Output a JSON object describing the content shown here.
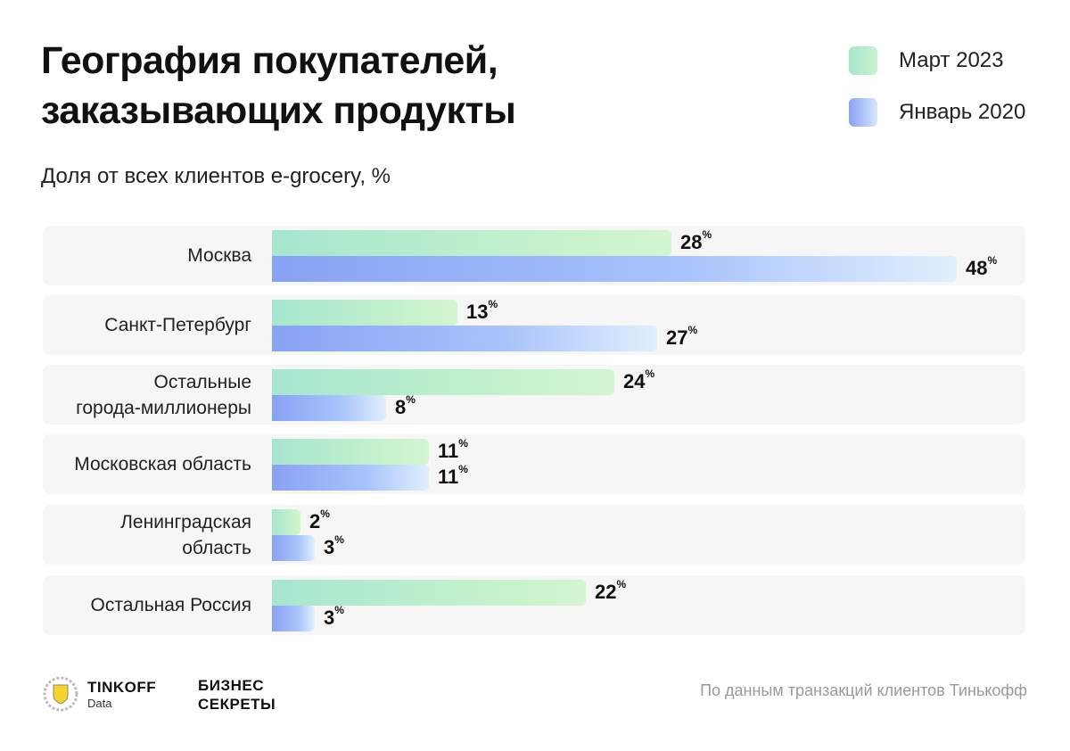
{
  "header": {
    "title": "География покупателей, заказывающих продукты",
    "subtitle": "Доля от всех клиентов e-grocery, %"
  },
  "legend": [
    {
      "label": "Март 2023",
      "color": "#a6e6cc"
    },
    {
      "label": "Январь 2020",
      "color": "#8aa2f5"
    }
  ],
  "chart_data": {
    "type": "bar",
    "orientation": "horizontal",
    "title": "География покупателей, заказывающих продукты",
    "subtitle": "Доля от всех клиентов e-grocery, %",
    "categories": [
      "Москва",
      "Санкт-Петербург",
      "Остальные\nгорода-миллионеры",
      "Московская область",
      "Ленинградская\nобласть",
      "Остальная Россия"
    ],
    "series": [
      {
        "name": "Март 2023",
        "values": [
          28,
          13,
          24,
          11,
          2,
          22
        ],
        "color": "#a6e6cc"
      },
      {
        "name": "Январь 2020",
        "values": [
          48,
          27,
          8,
          11,
          3,
          3
        ],
        "color": "#8aa2f5"
      }
    ],
    "value_suffix": "%",
    "xlim": [
      0,
      48
    ],
    "grid": false,
    "legend_position": "top-right"
  },
  "footer": {
    "tinkoff_name": "TINKOFF",
    "tinkoff_sub": "Data",
    "bs_line1": "БИЗНЕС",
    "bs_line2": "СЕКРЕТЫ",
    "source": "По данным транзакций клиентов Тинькофф"
  }
}
